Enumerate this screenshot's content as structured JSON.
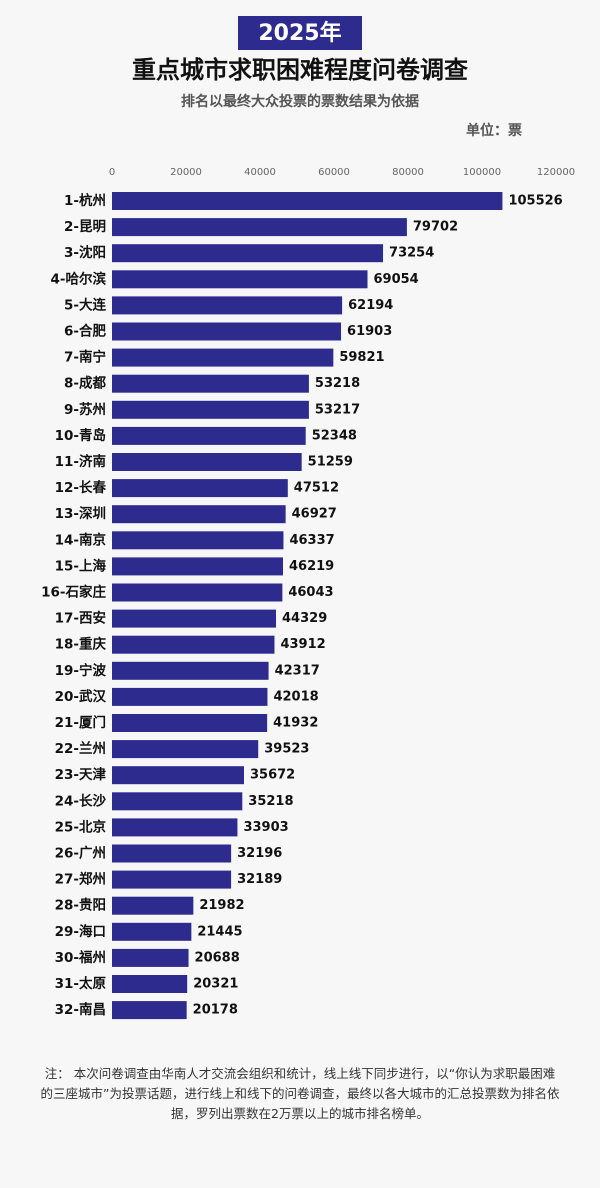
{
  "chart_data": {
    "type": "bar",
    "orientation": "horizontal",
    "title_badge": "2025年",
    "title": "重点城市求职困难程度问卷调查",
    "subtitle": "排名以最终大众投票的票数结果为依据",
    "unit": "单位：票",
    "categories": [
      "1-杭州",
      "2-昆明",
      "3-沈阳",
      "4-哈尔滨",
      "5-大连",
      "6-合肥",
      "7-南宁",
      "8-成都",
      "9-苏州",
      "10-青岛",
      "11-济南",
      "12-长春",
      "13-深圳",
      "14-南京",
      "15-上海",
      "16-石家庄",
      "17-西安",
      "18-重庆",
      "19-宁波",
      "20-武汉",
      "21-厦门",
      "22-兰州",
      "23-天津",
      "24-长沙",
      "25-北京",
      "26-广州",
      "27-郑州",
      "28-贵阳",
      "29-海口",
      "30-福州",
      "31-太原",
      "32-南昌"
    ],
    "values": [
      105526,
      79702,
      73254,
      69054,
      62194,
      61903,
      59821,
      53218,
      53217,
      52348,
      51259,
      47512,
      46927,
      46337,
      46219,
      46043,
      44329,
      43912,
      42317,
      42018,
      41932,
      39523,
      35672,
      35218,
      33903,
      32196,
      32189,
      21982,
      21445,
      20688,
      20321,
      20178
    ],
    "color": "#2e2b8e",
    "xlim": [
      0,
      120000
    ],
    "xticks": [
      0,
      20000,
      40000,
      60000,
      80000,
      100000,
      120000
    ],
    "grid": false,
    "note": "注： 本次问卷调查由华南人才交流会组织和统计，线上线下同步进行，以“你认为求职最困难的三座城市”为投票话题，进行线上和线下的问卷调查，最终以各大城市的汇总投票数为排名依据，罗列出票数在2万票以上的城市排名榜单。"
  }
}
